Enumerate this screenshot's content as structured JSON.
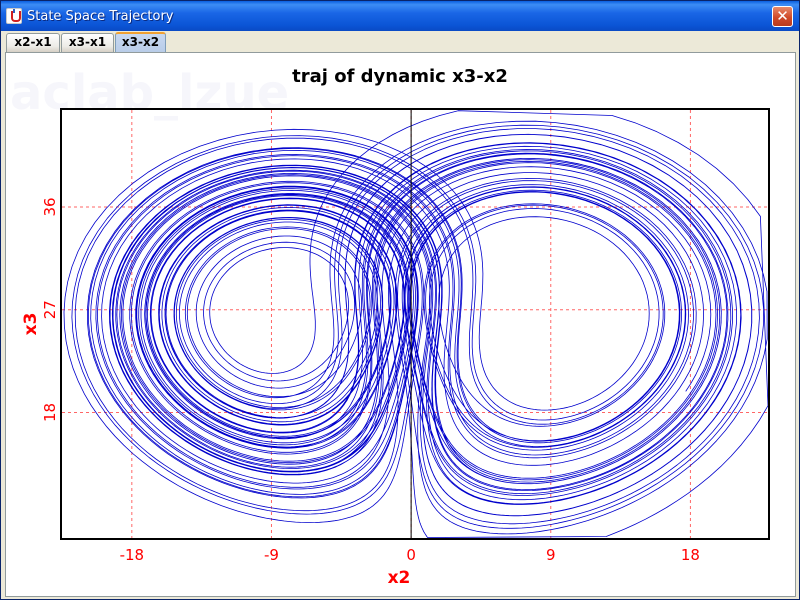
{
  "window": {
    "title": "State Space Trajectory",
    "close_symbol": "✕"
  },
  "tabs": [
    {
      "label": "x2-x1",
      "active": false
    },
    {
      "label": "x3-x1",
      "active": false
    },
    {
      "label": "x3-x2",
      "active": true
    }
  ],
  "watermark": "aclab_lzue",
  "colors": {
    "title_bar": "#0b55d6",
    "trajectory": "#0000cc",
    "axis_text": "#ff0000",
    "grid": "#ff6666"
  },
  "chart_data": {
    "type": "line",
    "title": "traj of dynamic x3-x2",
    "xlabel": "x2",
    "ylabel": "x3",
    "xlim": [
      -22.5,
      23
    ],
    "ylim": [
      7,
      44.5
    ],
    "xticks": [
      -18,
      -9,
      0,
      9,
      18
    ],
    "yticks": [
      18,
      27,
      36
    ],
    "xtick_labels": [
      "-18",
      "-9",
      "0",
      "9",
      "18"
    ],
    "ytick_labels": [
      "18",
      "27",
      "36"
    ],
    "grid": true,
    "series": [
      {
        "description_of_shape": "butterfly",
        "x": [
          -7.8,
          -4.9,
          -2.9,
          -2.6,
          -3.4,
          -4.6,
          -7.8,
          -11.0,
          -12.3,
          -11.0,
          -7.8
        ],
        "y": [
          24.7,
          24.6,
          22.0,
          19.4,
          16.9,
          16.6,
          16.0,
          16.6,
          19.4,
          22.0,
          24.7
        ]
      }
    ]
  }
}
